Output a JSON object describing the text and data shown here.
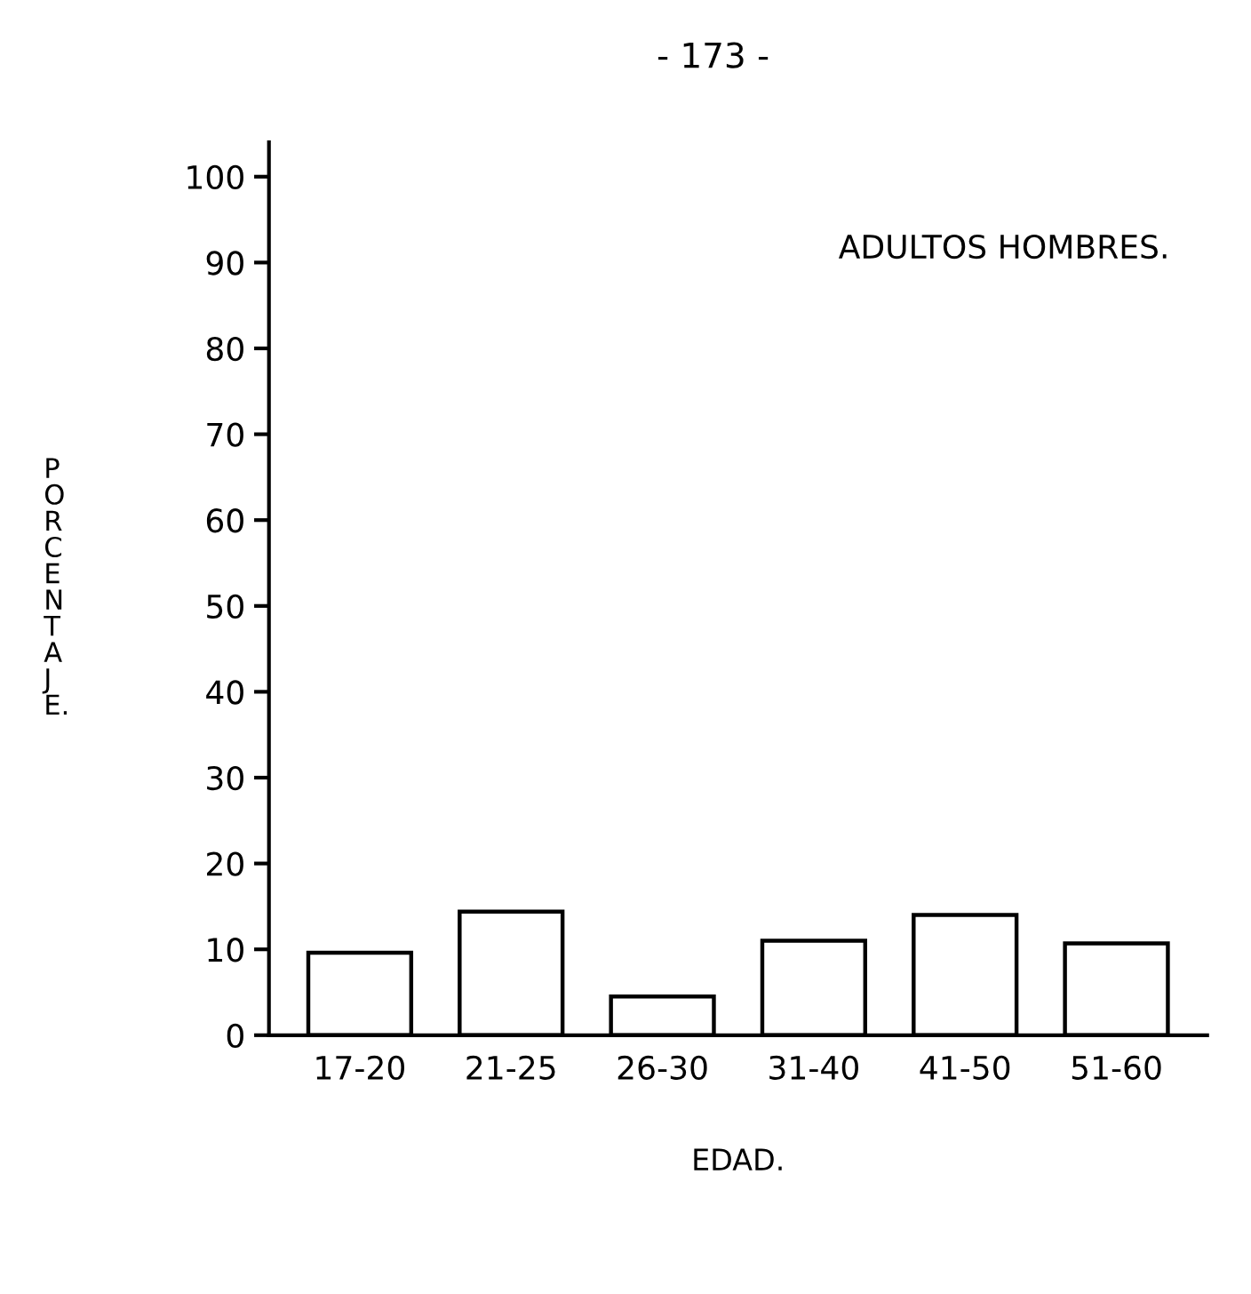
{
  "chart_data": {
    "type": "bar",
    "title": "ADULTOS HOMBRES.",
    "xlabel": "EDAD.",
    "ylabel": "PORCENTAJE.",
    "annotations": [
      "- 173 -"
    ],
    "categories": [
      "17-20",
      "21-25",
      "26-30",
      "31-40",
      "41-50",
      "51-60"
    ],
    "values": [
      9.6,
      14.4,
      4.5,
      11,
      14,
      10.7
    ],
    "color": "#ffffff",
    "ylim": [
      0,
      104
    ],
    "yticks": [
      0,
      10,
      20,
      30,
      40,
      50,
      60,
      70,
      80,
      90,
      100
    ],
    "grid": false
  }
}
